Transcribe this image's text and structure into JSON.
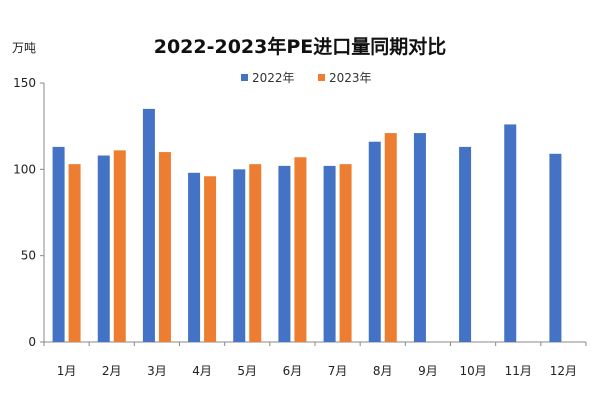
{
  "chart_data": {
    "type": "bar",
    "title": "2022-2023年PE进口量同期对比",
    "ylabel": "万吨",
    "xlabel": "",
    "ylim": [
      0,
      150
    ],
    "yticks": [
      0,
      50,
      100,
      150
    ],
    "categories": [
      "1月",
      "2月",
      "3月",
      "4月",
      "5月",
      "6月",
      "7月",
      "8月",
      "9月",
      "10月",
      "11月",
      "12月"
    ],
    "series": [
      {
        "name": "2022年",
        "color": "#4472C4",
        "values": [
          113,
          108,
          135,
          98,
          100,
          102,
          102,
          116,
          121,
          113,
          126,
          109
        ]
      },
      {
        "name": "2023年",
        "color": "#ED7D31",
        "values": [
          103,
          111,
          110,
          96,
          103,
          107,
          103,
          121,
          null,
          null,
          null,
          null
        ]
      }
    ],
    "legend_position": "top-center",
    "grid": false
  }
}
